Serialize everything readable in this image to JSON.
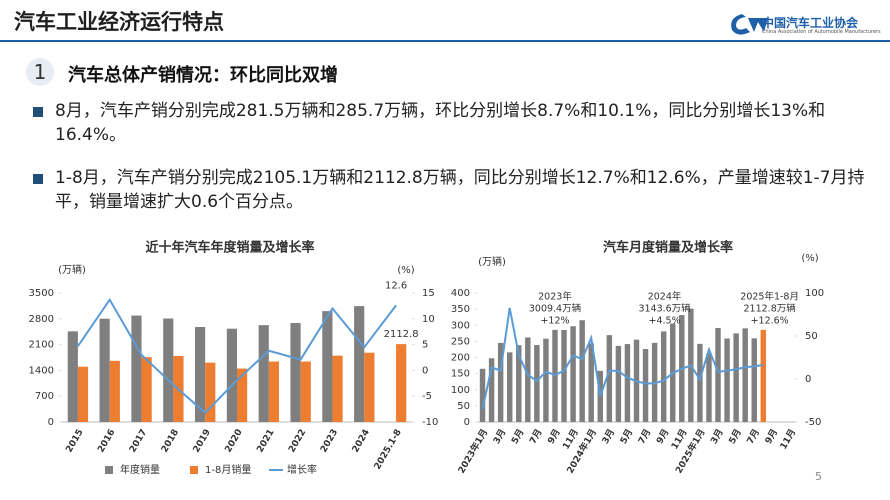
{
  "header": {
    "title": "汽车工业经济运行特点",
    "logo_cn": "中国汽车工业协会",
    "logo_en": "China Association of Automobile Manufacturers"
  },
  "section": {
    "number": "1",
    "heading": "汽车总体产销情况：环比同比双增"
  },
  "bullets": [
    "8月，汽车产销分别完成281.5万辆和285.7万辆，环比分别增长8.7%和10.1%，同比分别增长13%和16.4%。",
    "1-8月，汽车产销分别完成2105.1万辆和2112.8万辆，同比分别增长12.7%和12.6%，产量增速较1-7月持平，销量增速扩大0.6个百分点。"
  ],
  "page_number": "5",
  "chart_data": [
    {
      "type": "bar",
      "title": "近十年汽车年度销量及增长率",
      "y_unit": "(万辆)",
      "y2_unit": "(%)",
      "bar_mode": "grouped",
      "grid": false,
      "categories": [
        "2015",
        "2016",
        "2017",
        "2018",
        "2019",
        "2020",
        "2021",
        "2022",
        "2023",
        "2024",
        "2025.1-8"
      ],
      "series": [
        {
          "name": "年度销量",
          "color": "#7f7f7f",
          "values": [
            2460,
            2803,
            2888,
            2808,
            2577,
            2531,
            2627,
            2686,
            3009,
            3144,
            null
          ]
        },
        {
          "name": "1-8月销量",
          "color": "#ed7d31",
          "values": [
            1500,
            1660,
            1760,
            1790,
            1610,
            1450,
            1640,
            1640,
            1800,
            1880,
            2112.8
          ],
          "value_labels": [
            null,
            null,
            null,
            null,
            null,
            null,
            null,
            null,
            null,
            null,
            "2112.8"
          ]
        },
        {
          "name": "增长率",
          "color": "#5b9bd5",
          "type": "line",
          "axis": "y2",
          "values": [
            4.7,
            13.7,
            3.0,
            -2.8,
            -8.2,
            -1.9,
            3.8,
            2.1,
            12,
            4.5,
            12.6
          ],
          "value_labels": [
            null,
            null,
            null,
            null,
            null,
            null,
            null,
            null,
            null,
            null,
            "12.6"
          ]
        }
      ],
      "ylim": [
        0,
        3500
      ],
      "yticks": [
        0,
        700,
        1400,
        2100,
        2800,
        3500
      ],
      "y2lim": [
        -10,
        15
      ],
      "y2ticks": [
        -10,
        -5,
        0,
        5,
        10,
        15
      ]
    },
    {
      "type": "bar",
      "title": "汽车月度销量及增长率",
      "y_unit": "(万辆)",
      "y2_unit": "(%)",
      "bar_mode": "overlay",
      "grid": false,
      "categories": [
        "2023年1月",
        null,
        "3月",
        null,
        "5月",
        null,
        "7月",
        null,
        "9月",
        null,
        "11月",
        null,
        "2024年1月",
        null,
        "3月",
        null,
        "5月",
        null,
        "7月",
        null,
        "9月",
        null,
        "11月",
        null,
        "2025年1月",
        null,
        "3月",
        null,
        "5月",
        null,
        "7月",
        null,
        "9月",
        null,
        "11月"
      ],
      "series": [
        {
          "color": "#7f7f7f",
          "values": [
            164.9,
            197.6,
            245.1,
            215.9,
            238.2,
            262.2,
            238.7,
            258.2,
            285.8,
            285.3,
            297,
            315.6,
            243.9,
            158.4,
            269.4,
            235.9,
            241.7,
            255.3,
            226.2,
            245.3,
            280.9,
            305.3,
            331.6,
            351.6,
            242.3,
            212.9,
            291.5,
            259,
            274.8,
            290.4,
            259.3,
            null,
            null,
            null,
            null
          ]
        },
        {
          "color": "#ed7d31",
          "values": [
            null,
            null,
            null,
            null,
            null,
            null,
            null,
            null,
            null,
            null,
            null,
            null,
            null,
            null,
            null,
            null,
            null,
            null,
            null,
            null,
            null,
            null,
            null,
            null,
            null,
            null,
            null,
            null,
            null,
            null,
            null,
            285.7,
            null,
            null,
            null
          ]
        },
        {
          "color": "#5b9bd5",
          "type": "line",
          "axis": "y2",
          "values": [
            -35,
            13.5,
            9.7,
            82.7,
            27.9,
            4.8,
            -2.3,
            8.4,
            4.7,
            9.5,
            27.4,
            23.1,
            47.9,
            -19.9,
            9.9,
            9.3,
            1.5,
            -2.7,
            -5.2,
            -5,
            -1.7,
            7,
            11.7,
            15.9,
            -0.6,
            34.4,
            8.2,
            9.8,
            11.2,
            13.8,
            14.7,
            16.4,
            null,
            null,
            null
          ]
        }
      ],
      "annotations": [
        [
          "2023年",
          "3009.4万辆",
          "+12%"
        ],
        [
          "2024年",
          "3143.6万辆",
          "+4.5%"
        ],
        [
          "2025年1-8月",
          "2112.8万辆",
          "+12.6%"
        ]
      ],
      "ylim": [
        0,
        400
      ],
      "yticks": [
        0,
        50,
        100,
        150,
        200,
        250,
        300,
        350,
        400
      ],
      "y2lim": [
        -50,
        100
      ],
      "y2ticks": [
        -50,
        0,
        50,
        100
      ]
    }
  ]
}
